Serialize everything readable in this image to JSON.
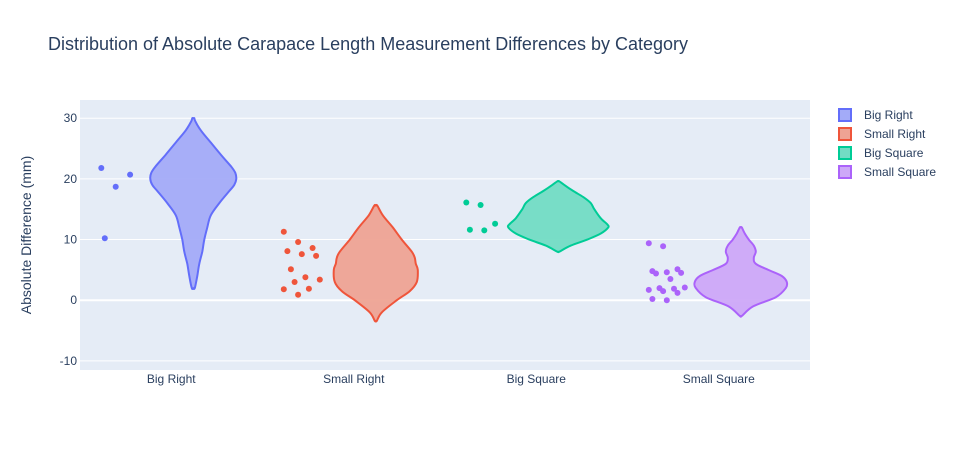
{
  "chart_data": {
    "type": "violin",
    "title": "Distribution of Absolute Carapace Length Measurement Differences by Category",
    "xlabel": "",
    "ylabel": "Absolute Difference (mm)",
    "ylim": [
      -11.5,
      33
    ],
    "yticks": [
      -10,
      0,
      10,
      20,
      30
    ],
    "grid": true,
    "legend_position": "top-right",
    "categories": [
      "Big Right",
      "Small Right",
      "Big Square",
      "Small Square"
    ],
    "series": [
      {
        "name": "Big Right",
        "color": "#636efa",
        "fill": "#a3abf8",
        "violin_min": 2,
        "violin_max": 30,
        "density": [
          [
            2,
            0.03
          ],
          [
            4,
            0.08
          ],
          [
            6,
            0.12
          ],
          [
            8,
            0.18
          ],
          [
            10,
            0.22
          ],
          [
            12,
            0.28
          ],
          [
            14,
            0.35
          ],
          [
            16,
            0.52
          ],
          [
            18,
            0.72
          ],
          [
            19,
            0.82
          ],
          [
            20,
            0.86
          ],
          [
            21,
            0.84
          ],
          [
            22,
            0.76
          ],
          [
            24,
            0.55
          ],
          [
            26,
            0.35
          ],
          [
            28,
            0.15
          ],
          [
            29.5,
            0.04
          ],
          [
            30,
            0.02
          ]
        ],
        "points": [
          21.8,
          18.7,
          20.7,
          10.2
        ]
      },
      {
        "name": "Small Right",
        "color": "#ef553b",
        "fill": "#eea394",
        "violin_min": -3.4,
        "violin_max": 15.6,
        "density": [
          [
            -3.4,
            0.02
          ],
          [
            -2,
            0.12
          ],
          [
            0,
            0.42
          ],
          [
            1.5,
            0.68
          ],
          [
            3,
            0.82
          ],
          [
            5,
            0.84
          ],
          [
            6,
            0.8
          ],
          [
            7,
            0.78
          ],
          [
            8,
            0.72
          ],
          [
            10,
            0.52
          ],
          [
            12,
            0.34
          ],
          [
            14,
            0.14
          ],
          [
            15.6,
            0.03
          ]
        ],
        "points": [
          11.3,
          9.6,
          8.6,
          8.1,
          7.6,
          7.3,
          5.1,
          3.8,
          3.4,
          3.0,
          1.9,
          1.8,
          0.9
        ]
      },
      {
        "name": "Big Square",
        "color": "#00cc96",
        "fill": "#72dcc4",
        "violin_min": 8,
        "violin_max": 19.6,
        "density": [
          [
            8,
            0.02
          ],
          [
            9,
            0.25
          ],
          [
            10,
            0.58
          ],
          [
            11,
            0.85
          ],
          [
            12,
            1.0
          ],
          [
            12.5,
            0.98
          ],
          [
            13.5,
            0.85
          ],
          [
            15,
            0.72
          ],
          [
            16,
            0.65
          ],
          [
            17,
            0.5
          ],
          [
            18,
            0.3
          ],
          [
            19,
            0.12
          ],
          [
            19.6,
            0.02
          ]
        ],
        "points": [
          16.1,
          15.7,
          12.6,
          11.6,
          11.5
        ]
      },
      {
        "name": "Small Square",
        "color": "#ab63fa",
        "fill": "#cda8f8",
        "violin_min": -2.6,
        "violin_max": 12,
        "density": [
          [
            -2.6,
            0.02
          ],
          [
            -1,
            0.25
          ],
          [
            0.5,
            0.7
          ],
          [
            2,
            0.9
          ],
          [
            3,
            0.92
          ],
          [
            4,
            0.82
          ],
          [
            5,
            0.55
          ],
          [
            6,
            0.3
          ],
          [
            7,
            0.26
          ],
          [
            8,
            0.3
          ],
          [
            9,
            0.26
          ],
          [
            10,
            0.16
          ],
          [
            11,
            0.08
          ],
          [
            12,
            0.02
          ]
        ],
        "points": [
          9.4,
          8.9,
          5.1,
          4.8,
          4.6,
          4.5,
          4.4,
          3.5,
          2.1,
          2.0,
          1.9,
          1.7,
          1.5,
          1.2,
          0.2,
          0.0
        ]
      }
    ]
  }
}
